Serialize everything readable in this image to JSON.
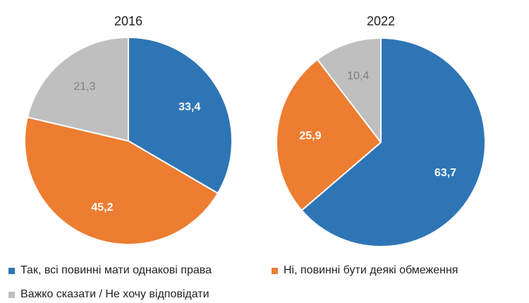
{
  "chart_data": [
    {
      "type": "pie",
      "title": "2016",
      "categories": [
        "Так, всі повинні мати однакові права",
        "Ні, повинні бути деякі обмеження",
        "Важко сказати / Не хочу відповідати"
      ],
      "values": [
        33.4,
        45.2,
        21.3
      ],
      "labels": [
        "33,4",
        "45,2",
        "21,3"
      ],
      "colors": [
        "#2e75b6",
        "#ed7d31",
        "#bfbfbf"
      ],
      "label_colors": [
        "#ffffff",
        "#ffffff",
        "#7f7f7f"
      ],
      "start": "12 o'clock",
      "direction": "clockwise"
    },
    {
      "type": "pie",
      "title": "2022",
      "categories": [
        "Так, всі повинні мати однакові права",
        "Ні, повинні бути деякі обмеження",
        "Важко сказати / Не хочу відповідати"
      ],
      "values": [
        63.7,
        25.9,
        10.4
      ],
      "labels": [
        "63,7",
        "25,9",
        "10,4"
      ],
      "colors": [
        "#2e75b6",
        "#ed7d31",
        "#bfbfbf"
      ],
      "label_colors": [
        "#ffffff",
        "#ffffff",
        "#7f7f7f"
      ],
      "start": "12 o'clock",
      "direction": "clockwise"
    }
  ],
  "legend": {
    "items": [
      {
        "label": "Так, всі повинні мати однакові права",
        "color": "#2e75b6"
      },
      {
        "label": "Ні, повинні бути деякі обмеження",
        "color": "#ed7d31"
      },
      {
        "label": "Важко сказати / Не хочу відповідати",
        "color": "#bfbfbf"
      }
    ],
    "placement": "bottom"
  }
}
